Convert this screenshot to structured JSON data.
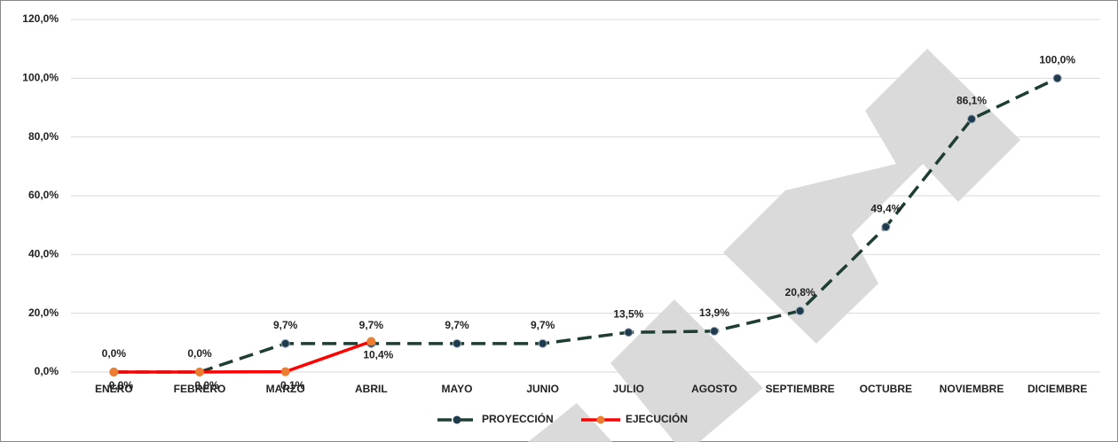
{
  "chart_data": {
    "type": "line",
    "categories": [
      "ENERO",
      "FEBRERO",
      "MARZO",
      "ABRIL",
      "MAYO",
      "JUNIO",
      "JULIO",
      "AGOSTO",
      "SEPTIEMBRE",
      "OCTUBRE",
      "NOVIEMBRE",
      "DICIEMBRE"
    ],
    "series": [
      {
        "name": "PROYECCIÓN",
        "color": "#1e3d33",
        "marker_color": "#1f3b4d",
        "dashed": true,
        "values": [
          0,
          0,
          9.7,
          9.7,
          9.7,
          9.7,
          13.5,
          13.9,
          20.8,
          49.4,
          86.1,
          100
        ],
        "value_labels": [
          "0,0%",
          "0,0%",
          "9,7%",
          "9,7%",
          "9,7%",
          "9,7%",
          "13,5%",
          "13,9%",
          "20,8%",
          "49,4%",
          "86,1%",
          "100,0%"
        ]
      },
      {
        "name": "EJECUCIÓN",
        "color": "#ff0000",
        "marker_color": "#ed7d31",
        "dashed": false,
        "values": [
          0,
          0,
          0.1,
          10.4,
          null,
          null,
          null,
          null,
          null,
          null,
          null,
          null
        ],
        "value_labels": [
          "0,0%",
          "0,0%",
          "0,1%",
          "10,4%",
          null,
          null,
          null,
          null,
          null,
          null,
          null,
          null
        ]
      }
    ],
    "ylim": [
      0,
      120
    ],
    "yticks": [
      {
        "value": 0,
        "label": "0,0%"
      },
      {
        "value": 20,
        "label": "20,0%"
      },
      {
        "value": 40,
        "label": "40,0%"
      },
      {
        "value": 60,
        "label": "60,0%"
      },
      {
        "value": 80,
        "label": "80,0%"
      },
      {
        "value": 100,
        "label": "100,0%"
      },
      {
        "value": 120,
        "label": "120,0%"
      }
    ],
    "grid": true,
    "legend": "bottom"
  }
}
